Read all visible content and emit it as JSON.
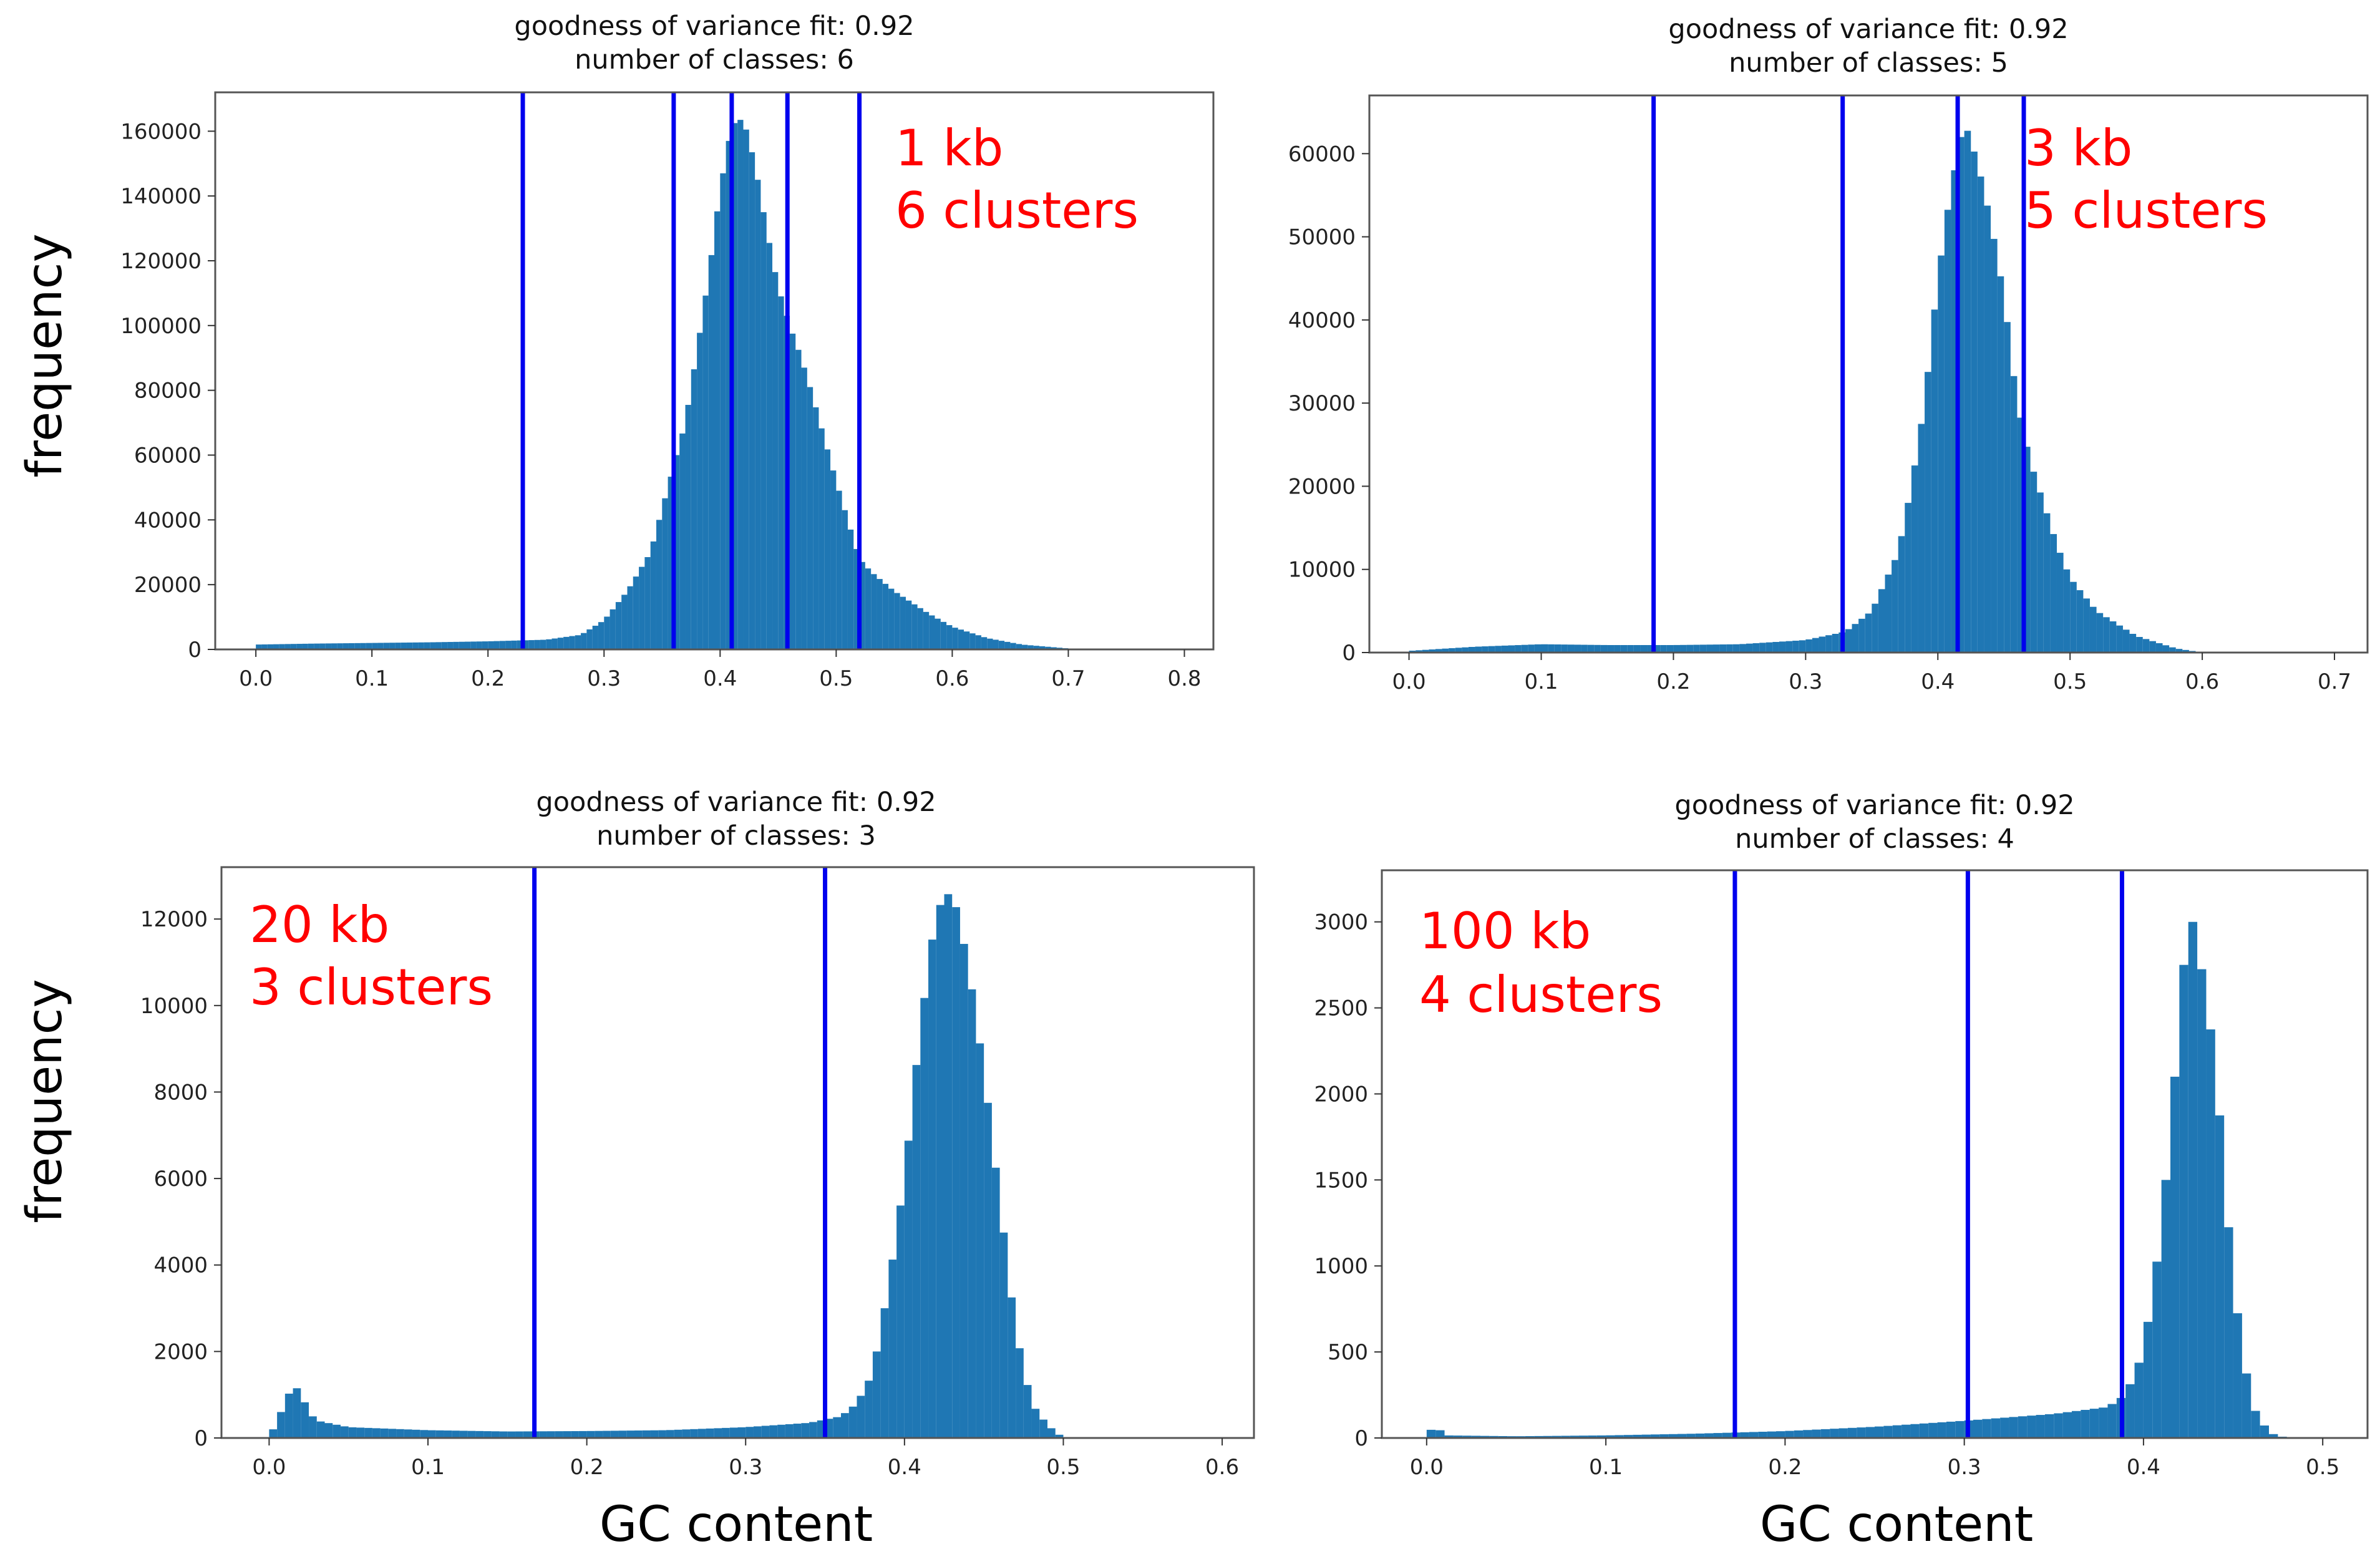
{
  "figure": {
    "ylabel_top": "frequency",
    "ylabel_bottom": "frequency",
    "xlabel_left": "GC content",
    "xlabel_right": "GC content"
  },
  "colors": {
    "bars": "#1f77b4",
    "breaks": "#0000ee",
    "annotation": "#ff0000",
    "frame": "#555555"
  },
  "chart_data": [
    {
      "type": "bar",
      "title": [
        "goodness of variance fit: 0.92",
        "number of classes: 6"
      ],
      "annotation": [
        "1 kb",
        "6 clusters"
      ],
      "xlim": [
        -0.035,
        0.825
      ],
      "ylim": [
        0,
        172000
      ],
      "xticks": [
        0.0,
        0.1,
        0.2,
        0.3,
        0.4,
        0.5,
        0.6,
        0.7,
        0.8
      ],
      "xtick_labels": [
        "0.0",
        "0.1",
        "0.2",
        "0.3",
        "0.4",
        "0.5",
        "0.6",
        "0.7",
        "0.8"
      ],
      "yticks": [
        0,
        20000,
        40000,
        60000,
        80000,
        100000,
        120000,
        140000,
        160000
      ],
      "ytick_labels": [
        "0",
        "20000",
        "40000",
        "60000",
        "80000",
        "100000",
        "120000",
        "140000",
        "160000"
      ],
      "breaks": [
        0.23,
        0.36,
        0.41,
        0.458,
        0.52
      ],
      "hist_points": [
        [
          0.0,
          1500
        ],
        [
          0.05,
          1800
        ],
        [
          0.1,
          2000
        ],
        [
          0.15,
          2200
        ],
        [
          0.2,
          2500
        ],
        [
          0.25,
          3000
        ],
        [
          0.28,
          4500
        ],
        [
          0.3,
          9000
        ],
        [
          0.32,
          18000
        ],
        [
          0.34,
          30000
        ],
        [
          0.355,
          50000
        ],
        [
          0.37,
          70000
        ],
        [
          0.38,
          92000
        ],
        [
          0.39,
          115000
        ],
        [
          0.4,
          142000
        ],
        [
          0.41,
          162000
        ],
        [
          0.42,
          164000
        ],
        [
          0.43,
          150000
        ],
        [
          0.44,
          130000
        ],
        [
          0.45,
          112000
        ],
        [
          0.46,
          100000
        ],
        [
          0.47,
          90000
        ],
        [
          0.48,
          78000
        ],
        [
          0.49,
          65000
        ],
        [
          0.5,
          52000
        ],
        [
          0.51,
          40000
        ],
        [
          0.52,
          28000
        ],
        [
          0.53,
          24000
        ],
        [
          0.55,
          18000
        ],
        [
          0.58,
          11000
        ],
        [
          0.6,
          7000
        ],
        [
          0.63,
          3500
        ],
        [
          0.66,
          1500
        ],
        [
          0.7,
          300
        ],
        [
          0.72,
          0
        ]
      ]
    },
    {
      "type": "bar",
      "title": [
        "goodness of variance fit: 0.92",
        "number of classes: 5"
      ],
      "annotation": [
        "3 kb",
        "5 clusters"
      ],
      "xlim": [
        -0.03,
        0.725
      ],
      "ylim": [
        0,
        67000
      ],
      "xticks": [
        0.0,
        0.1,
        0.2,
        0.3,
        0.4,
        0.5,
        0.6,
        0.7
      ],
      "xtick_labels": [
        "0.0",
        "0.1",
        "0.2",
        "0.3",
        "0.4",
        "0.5",
        "0.6",
        "0.7"
      ],
      "yticks": [
        0,
        10000,
        20000,
        30000,
        40000,
        50000,
        60000
      ],
      "ytick_labels": [
        "0",
        "10000",
        "20000",
        "30000",
        "40000",
        "50000",
        "60000"
      ],
      "breaks": [
        0.185,
        0.328,
        0.415,
        0.465
      ],
      "hist_points": [
        [
          0.0,
          200
        ],
        [
          0.05,
          700
        ],
        [
          0.1,
          1000
        ],
        [
          0.15,
          900
        ],
        [
          0.2,
          900
        ],
        [
          0.25,
          1000
        ],
        [
          0.3,
          1500
        ],
        [
          0.33,
          2500
        ],
        [
          0.35,
          5000
        ],
        [
          0.37,
          12000
        ],
        [
          0.38,
          20000
        ],
        [
          0.39,
          30000
        ],
        [
          0.4,
          45000
        ],
        [
          0.41,
          56000
        ],
        [
          0.42,
          64000
        ],
        [
          0.43,
          59000
        ],
        [
          0.44,
          52000
        ],
        [
          0.45,
          43000
        ],
        [
          0.46,
          30000
        ],
        [
          0.47,
          23000
        ],
        [
          0.48,
          18000
        ],
        [
          0.49,
          13000
        ],
        [
          0.5,
          9000
        ],
        [
          0.52,
          5000
        ],
        [
          0.55,
          2000
        ],
        [
          0.58,
          500
        ],
        [
          0.6,
          0
        ]
      ]
    },
    {
      "type": "bar",
      "title": [
        "goodness of variance fit: 0.92",
        "number of classes: 3"
      ],
      "annotation": [
        "20 kb",
        "3 clusters"
      ],
      "xlim": [
        -0.03,
        0.62
      ],
      "ylim": [
        0,
        13200
      ],
      "xticks": [
        0.0,
        0.1,
        0.2,
        0.3,
        0.4,
        0.5,
        0.6
      ],
      "xtick_labels": [
        "0.0",
        "0.1",
        "0.2",
        "0.3",
        "0.4",
        "0.5",
        "0.6"
      ],
      "yticks": [
        0,
        2000,
        4000,
        6000,
        8000,
        10000,
        12000
      ],
      "ytick_labels": [
        "0",
        "2000",
        "4000",
        "6000",
        "8000",
        "10000",
        "12000"
      ],
      "breaks": [
        0.167,
        0.35
      ],
      "hist_points": [
        [
          0.0,
          0
        ],
        [
          0.005,
          400
        ],
        [
          0.01,
          800
        ],
        [
          0.015,
          1250
        ],
        [
          0.02,
          1050
        ],
        [
          0.025,
          600
        ],
        [
          0.03,
          400
        ],
        [
          0.05,
          250
        ],
        [
          0.1,
          180
        ],
        [
          0.15,
          150
        ],
        [
          0.2,
          160
        ],
        [
          0.25,
          180
        ],
        [
          0.3,
          250
        ],
        [
          0.34,
          350
        ],
        [
          0.36,
          500
        ],
        [
          0.37,
          800
        ],
        [
          0.38,
          1500
        ],
        [
          0.39,
          3500
        ],
        [
          0.4,
          6000
        ],
        [
          0.41,
          9500
        ],
        [
          0.42,
          12200
        ],
        [
          0.43,
          12700
        ],
        [
          0.44,
          11000
        ],
        [
          0.45,
          8500
        ],
        [
          0.46,
          5500
        ],
        [
          0.47,
          2500
        ],
        [
          0.48,
          800
        ],
        [
          0.49,
          300
        ],
        [
          0.5,
          0
        ]
      ]
    },
    {
      "type": "bar",
      "title": [
        "goodness of variance fit: 0.92",
        "number of classes: 4"
      ],
      "annotation": [
        "100 kb",
        "4 clusters"
      ],
      "xlim": [
        -0.025,
        0.525
      ],
      "ylim": [
        0,
        3300
      ],
      "xticks": [
        0.0,
        0.1,
        0.2,
        0.3,
        0.4,
        0.5
      ],
      "xtick_labels": [
        "0.0",
        "0.1",
        "0.2",
        "0.3",
        "0.4",
        "0.5"
      ],
      "yticks": [
        0,
        500,
        1000,
        1500,
        2000,
        2500,
        3000
      ],
      "ytick_labels": [
        "0",
        "500",
        "1000",
        "1500",
        "2000",
        "2500",
        "3000"
      ],
      "breaks": [
        0.172,
        0.302,
        0.388
      ],
      "hist_points": [
        [
          0.0,
          20
        ],
        [
          0.005,
          75
        ],
        [
          0.01,
          15
        ],
        [
          0.05,
          10
        ],
        [
          0.1,
          15
        ],
        [
          0.15,
          25
        ],
        [
          0.2,
          40
        ],
        [
          0.25,
          65
        ],
        [
          0.3,
          100
        ],
        [
          0.35,
          140
        ],
        [
          0.38,
          180
        ],
        [
          0.39,
          250
        ],
        [
          0.4,
          500
        ],
        [
          0.41,
          1200
        ],
        [
          0.42,
          2400
        ],
        [
          0.425,
          3100
        ],
        [
          0.43,
          2900
        ],
        [
          0.44,
          2200
        ],
        [
          0.45,
          900
        ],
        [
          0.46,
          200
        ],
        [
          0.47,
          30
        ],
        [
          0.48,
          0
        ]
      ]
    }
  ]
}
